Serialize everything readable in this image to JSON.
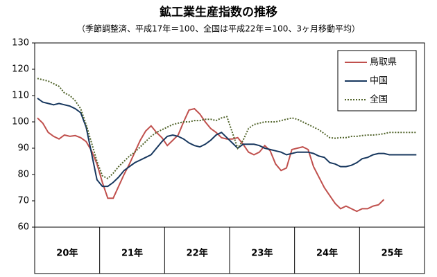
{
  "chart_data": {
    "type": "line",
    "title": "鉱工業生産指数の推移",
    "subtitle": "（季節調整済、平成17年＝100、全国は平成22年＝100、3ヶ月移動平均）",
    "groups": [
      "20年",
      "21年",
      "22年",
      "23年",
      "24年",
      "25年"
    ],
    "ylim": [
      60,
      130
    ],
    "yticks": [
      60,
      70,
      80,
      90,
      100,
      110,
      120,
      130
    ],
    "grid": false,
    "legend": "top-right",
    "series": [
      {
        "name": "鳥取県",
        "color": "#c0504d",
        "dash": false,
        "values": [
          101.5,
          99.5,
          96,
          94.5,
          93.5,
          95,
          94.5,
          94.8,
          94,
          92.5,
          89,
          84,
          77,
          71,
          71,
          75.5,
          80,
          84,
          88.5,
          93,
          96.5,
          98.5,
          96,
          94,
          91,
          93,
          95,
          100,
          104.5,
          105,
          103,
          100,
          97.5,
          96,
          94,
          93.5,
          93.5,
          94,
          91.5,
          88.5,
          87.5,
          88.5,
          91,
          89,
          84,
          81.5,
          82.5,
          89.5,
          90,
          90.5,
          89.5,
          83,
          79,
          75,
          72,
          69,
          67,
          68,
          67,
          66,
          67,
          67,
          68,
          68.5,
          70.5,
          null,
          null,
          null,
          null,
          null,
          null,
          null
        ]
      },
      {
        "name": "中国",
        "color": "#17375e",
        "dash": false,
        "values": [
          109,
          107.5,
          107,
          106.5,
          107,
          106.5,
          106,
          105,
          103.5,
          98,
          88,
          78,
          75.5,
          75.5,
          77,
          79,
          81.5,
          83,
          84.5,
          85.5,
          86.5,
          87.5,
          90,
          92.5,
          94.5,
          95,
          94.5,
          93.5,
          92,
          91,
          90.5,
          91.5,
          93,
          95,
          96,
          94,
          92,
          90,
          91.5,
          91.5,
          91.5,
          91,
          90,
          89.5,
          89,
          88.5,
          87.5,
          88,
          88.5,
          88.5,
          88.5,
          88,
          87,
          86.5,
          84.5,
          84,
          83,
          83,
          83.5,
          84.5,
          86,
          86.5,
          87.5,
          88,
          88,
          87.5,
          87.5,
          87.5,
          87.5,
          87.5,
          87.5,
          null
        ]
      },
      {
        "name": "全国",
        "color": "#4f6228",
        "dash": true,
        "values": [
          116.5,
          116,
          115.5,
          114.5,
          113.5,
          111,
          110,
          108,
          105,
          99,
          92,
          85,
          79.5,
          78.5,
          80.5,
          83,
          85,
          87,
          88.5,
          90.5,
          92.5,
          94.5,
          96,
          97,
          98,
          99,
          99.5,
          100,
          100,
          100.5,
          100.5,
          101,
          101,
          100.5,
          101.5,
          102,
          96,
          90,
          93,
          97.5,
          99,
          99.5,
          100,
          100,
          100,
          100.5,
          101,
          101.5,
          101,
          100,
          99,
          98,
          97,
          95.5,
          94,
          93.8,
          94,
          94,
          94.5,
          94.5,
          94.8,
          95,
          95,
          95.2,
          95.5,
          96,
          96,
          96,
          96,
          96,
          96,
          null
        ]
      }
    ]
  }
}
